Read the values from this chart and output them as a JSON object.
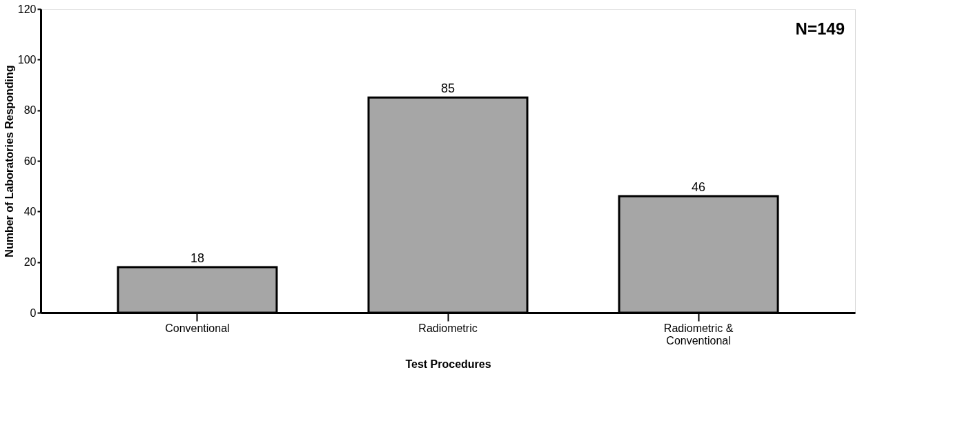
{
  "chart_data": {
    "type": "bar",
    "xlabel": "Test Procedures",
    "ylabel": "Number of Laboratories Responding",
    "categories": [
      "Conventional",
      "Radiometric",
      "Radiometric & Conventional"
    ],
    "values": [
      18,
      85,
      46
    ],
    "color": "#a6a6a6",
    "data_labels": true,
    "ylim": [
      0,
      120
    ],
    "yticks": [
      0,
      20,
      40,
      60,
      80,
      100,
      120
    ],
    "grid": false,
    "annotations": [
      "N=149"
    ]
  }
}
